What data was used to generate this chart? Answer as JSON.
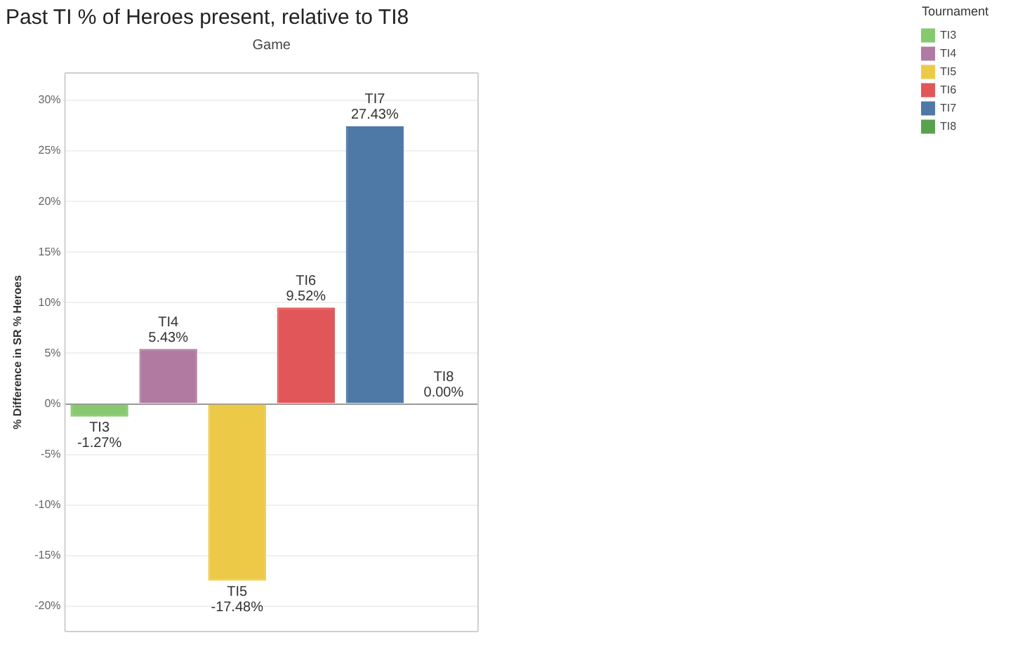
{
  "chart_data": {
    "type": "bar",
    "title": "Past TI % of Heroes present, relative to TI8",
    "ylabel": "% Difference in SR % Heroes",
    "legend_title": "Tournament",
    "annotations": [
      "Game"
    ],
    "categories": [
      "TI3",
      "TI4",
      "TI5",
      "TI6",
      "TI7",
      "TI8"
    ],
    "series": [
      {
        "name": "TI3",
        "color": "#86c96e",
        "values": [
          -1.27,
          null,
          null,
          null,
          null,
          null
        ],
        "value_labels": [
          "-1.27%",
          null,
          null,
          null,
          null,
          null
        ]
      },
      {
        "name": "TI4",
        "color": "#b07aa1",
        "values": [
          null,
          5.43,
          null,
          null,
          null,
          null
        ],
        "value_labels": [
          null,
          "5.43%",
          null,
          null,
          null,
          null
        ]
      },
      {
        "name": "TI5",
        "color": "#edc948",
        "values": [
          null,
          null,
          -17.48,
          null,
          null,
          null
        ],
        "value_labels": [
          null,
          null,
          "-17.48%",
          null,
          null,
          null
        ]
      },
      {
        "name": "TI6",
        "color": "#e15759",
        "values": [
          null,
          null,
          null,
          9.52,
          null,
          null
        ],
        "value_labels": [
          null,
          null,
          null,
          "9.52%",
          null,
          null
        ]
      },
      {
        "name": "TI7",
        "color": "#4e79a7",
        "values": [
          null,
          null,
          null,
          null,
          27.43,
          null
        ],
        "value_labels": [
          null,
          null,
          null,
          null,
          "27.43%",
          null
        ]
      },
      {
        "name": "TI8",
        "color": "#59a14f",
        "values": [
          null,
          null,
          null,
          null,
          null,
          0.0
        ],
        "value_labels": [
          null,
          null,
          null,
          null,
          null,
          "0.00%"
        ]
      }
    ],
    "ylim": [
      -22.5,
      32.7
    ],
    "yticks": [
      {
        "value": -20,
        "label": "-20%"
      },
      {
        "value": -15,
        "label": "-15%"
      },
      {
        "value": -10,
        "label": "-10%"
      },
      {
        "value": -5,
        "label": "-5%"
      },
      {
        "value": 0,
        "label": "0%"
      },
      {
        "value": 5,
        "label": "5%"
      },
      {
        "value": 10,
        "label": "10%"
      },
      {
        "value": 15,
        "label": "15%"
      },
      {
        "value": 20,
        "label": "20%"
      },
      {
        "value": 25,
        "label": "25%"
      },
      {
        "value": 30,
        "label": "30%"
      }
    ],
    "grid": "y",
    "legend": "top right",
    "tick_labels": "y"
  }
}
